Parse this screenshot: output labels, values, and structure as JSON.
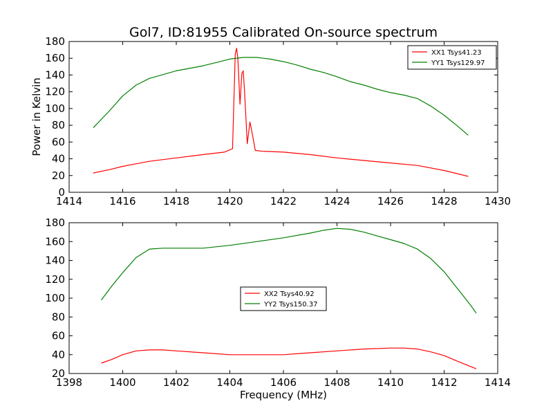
{
  "chart_data": [
    {
      "type": "line",
      "title": "Gol7, ID:81955 Calibrated On-source spectrum",
      "xlabel": "",
      "ylabel": "Power in Kelvin",
      "xlim": [
        1414,
        1430
      ],
      "ylim": [
        0,
        180
      ],
      "xticks": [
        "1414",
        "1416",
        "1418",
        "1420",
        "1422",
        "1424",
        "1426",
        "1428",
        "1430"
      ],
      "yticks": [
        "0",
        "20",
        "40",
        "60",
        "80",
        "100",
        "120",
        "140",
        "160",
        "180"
      ],
      "grid": false,
      "legend_position": "top-right",
      "series": [
        {
          "name": "XX1 Tsys41.23",
          "color": "#ff0000",
          "points": [
            [
              1414.9,
              23
            ],
            [
              1415.5,
              27
            ],
            [
              1416,
              31
            ],
            [
              1416.5,
              34
            ],
            [
              1417,
              37
            ],
            [
              1418,
              41
            ],
            [
              1419,
              45
            ],
            [
              1419.8,
              48
            ],
            [
              1420.1,
              52
            ],
            [
              1420.2,
              165
            ],
            [
              1420.25,
              172
            ],
            [
              1420.3,
              160
            ],
            [
              1420.38,
              105
            ],
            [
              1420.45,
              142
            ],
            [
              1420.5,
              145
            ],
            [
              1420.55,
              120
            ],
            [
              1420.65,
              58
            ],
            [
              1420.75,
              84
            ],
            [
              1420.85,
              68
            ],
            [
              1420.95,
              50
            ],
            [
              1421.2,
              49
            ],
            [
              1422,
              48
            ],
            [
              1423,
              45
            ],
            [
              1424,
              41
            ],
            [
              1425,
              38
            ],
            [
              1426,
              35
            ],
            [
              1427,
              32
            ],
            [
              1428,
              26
            ],
            [
              1428.9,
              19
            ]
          ]
        },
        {
          "name": "YY1 Tsys129.97",
          "color": "#008000",
          "points": [
            [
              1414.9,
              77
            ],
            [
              1415.5,
              97
            ],
            [
              1416,
              115
            ],
            [
              1416.5,
              128
            ],
            [
              1417,
              136
            ],
            [
              1418,
              145
            ],
            [
              1419,
              151
            ],
            [
              1419.5,
              155
            ],
            [
              1420,
              159
            ],
            [
              1420.5,
              161
            ],
            [
              1421,
              161
            ],
            [
              1421.5,
              159
            ],
            [
              1422,
              156
            ],
            [
              1422.5,
              152
            ],
            [
              1423,
              147
            ],
            [
              1423.5,
              143
            ],
            [
              1424,
              138
            ],
            [
              1424.5,
              132
            ],
            [
              1425,
              128
            ],
            [
              1425.5,
              123
            ],
            [
              1426,
              119
            ],
            [
              1426.5,
              116
            ],
            [
              1427,
              112
            ],
            [
              1427.5,
              103
            ],
            [
              1428,
              92
            ],
            [
              1428.5,
              79
            ],
            [
              1428.9,
              68
            ]
          ]
        }
      ]
    },
    {
      "type": "line",
      "title": "",
      "xlabel": "Frequency (MHz)",
      "ylabel": "",
      "xlim": [
        1398,
        1414
      ],
      "ylim": [
        20,
        180
      ],
      "xticks": [
        "1398",
        "1400",
        "1402",
        "1404",
        "1406",
        "1408",
        "1410",
        "1412",
        "1414"
      ],
      "yticks": [
        "20",
        "40",
        "60",
        "80",
        "100",
        "120",
        "140",
        "160",
        "180"
      ],
      "grid": false,
      "legend_position": "center",
      "series": [
        {
          "name": "XX2 Tsys40.92",
          "color": "#ff0000",
          "points": [
            [
              1399.2,
              31
            ],
            [
              1399.6,
              35
            ],
            [
              1400,
              40
            ],
            [
              1400.5,
              44
            ],
            [
              1401,
              45
            ],
            [
              1401.5,
              45
            ],
            [
              1402,
              44
            ],
            [
              1403,
              42
            ],
            [
              1404,
              40
            ],
            [
              1405,
              40
            ],
            [
              1406,
              40
            ],
            [
              1407,
              42
            ],
            [
              1408,
              44
            ],
            [
              1409,
              46
            ],
            [
              1410,
              47
            ],
            [
              1410.5,
              47
            ],
            [
              1411,
              46
            ],
            [
              1411.5,
              43
            ],
            [
              1412,
              39
            ],
            [
              1412.5,
              33
            ],
            [
              1413.2,
              25
            ]
          ]
        },
        {
          "name": "YY2 Tsys150.37",
          "color": "#008000",
          "points": [
            [
              1399.2,
              98
            ],
            [
              1399.6,
              113
            ],
            [
              1400,
              127
            ],
            [
              1400.5,
              143
            ],
            [
              1401,
              152
            ],
            [
              1401.5,
              153
            ],
            [
              1402,
              153
            ],
            [
              1403,
              153
            ],
            [
              1404,
              156
            ],
            [
              1405,
              160
            ],
            [
              1406,
              164
            ],
            [
              1407,
              169
            ],
            [
              1407.5,
              172
            ],
            [
              1408,
              174
            ],
            [
              1408.5,
              173
            ],
            [
              1409,
              170
            ],
            [
              1409.5,
              166
            ],
            [
              1410,
              162
            ],
            [
              1410.5,
              158
            ],
            [
              1411,
              152
            ],
            [
              1411.5,
              142
            ],
            [
              1412,
              128
            ],
            [
              1412.5,
              110
            ],
            [
              1413,
              92
            ],
            [
              1413.2,
              84
            ]
          ]
        }
      ]
    }
  ]
}
